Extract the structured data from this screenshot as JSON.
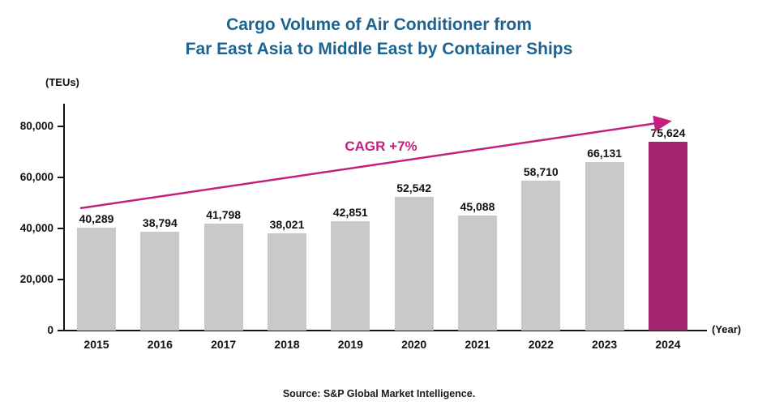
{
  "title": {
    "line1": "Cargo Volume of Air Conditioner from",
    "line2": "Far East Asia to Middle East by Container Ships"
  },
  "y_axis": {
    "unit_label": "(TEUs)",
    "max": 80000,
    "ticks": [
      {
        "label": "80,000",
        "value": 80000
      },
      {
        "label": "60,000",
        "value": 60000
      },
      {
        "label": "40,000",
        "value": 40000
      },
      {
        "label": "20,000",
        "value": 20000
      },
      {
        "label": "0",
        "value": 0
      }
    ]
  },
  "x_axis": {
    "label": "(Year)"
  },
  "annotation": {
    "cagr_label": "CAGR +7%"
  },
  "source": "Source: S&P Global Market Intelligence.",
  "colors": {
    "title_blue": "#1d6390",
    "bar_gray": "#c9c9ca",
    "highlight_magenta": "#a3256f",
    "accent_pink": "#c41e7e",
    "text": "#111111"
  },
  "chart_data": {
    "type": "bar",
    "title": "Cargo Volume of Air Conditioner from Far East Asia to Middle East by Container Ships",
    "xlabel": "(Year)",
    "ylabel": "(TEUs)",
    "ylim": [
      0,
      80000
    ],
    "grid": false,
    "legend": false,
    "categories": [
      "2015",
      "2016",
      "2017",
      "2018",
      "2019",
      "2020",
      "2021",
      "2022",
      "2023",
      "2024"
    ],
    "values": [
      40289,
      38794,
      41798,
      38021,
      42851,
      52542,
      45088,
      58710,
      66131,
      75624
    ],
    "value_labels": [
      "40,289",
      "38,794",
      "41,798",
      "38,021",
      "42,851",
      "52,542",
      "45,088",
      "58,710",
      "66,131",
      "75,624"
    ],
    "highlight_index": 9,
    "annotation": "CAGR +7%"
  }
}
